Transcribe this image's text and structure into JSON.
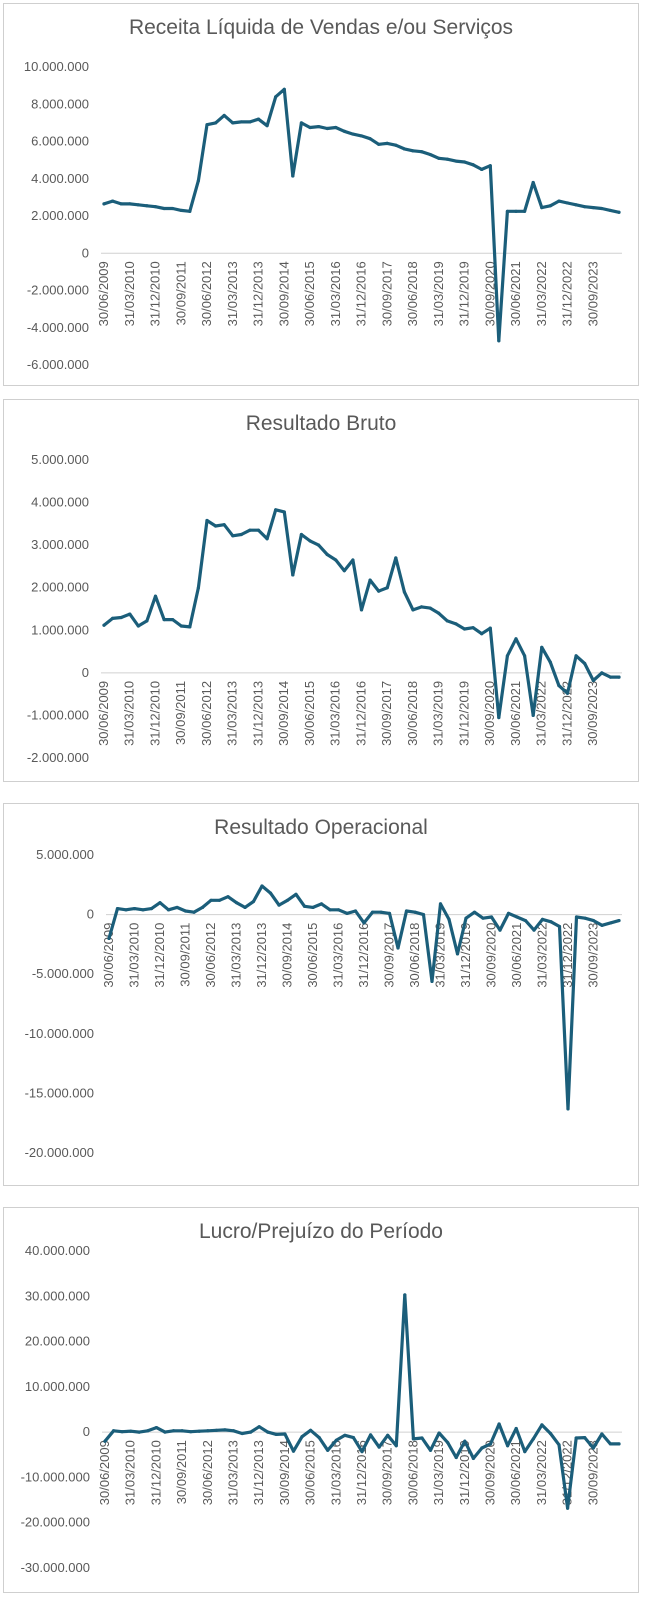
{
  "chart_data": [
    {
      "type": "line",
      "title": "Receita Líquida de Vendas e/ou Serviços",
      "color": "#1b5e7a",
      "ylim": [
        -6000000,
        10000000
      ],
      "y_ticks": [
        10000000,
        8000000,
        6000000,
        4000000,
        2000000,
        0,
        -2000000,
        -4000000,
        -6000000
      ],
      "y_tick_labels": [
        "10.000.000",
        "8.000.000",
        "6.000.000",
        "4.000.000",
        "2.000.000",
        "0",
        "-2.000.000",
        "-4.000.000",
        "-6.000.000"
      ],
      "x_tick_labels": [
        "30/06/2009",
        "31/03/2010",
        "31/12/2010",
        "30/09/2011",
        "30/06/2012",
        "31/03/2013",
        "31/12/2013",
        "30/09/2014",
        "30/06/2015",
        "31/03/2016",
        "31/12/2016",
        "30/09/2017",
        "30/06/2018",
        "31/03/2019",
        "31/12/2019",
        "30/09/2020",
        "30/06/2021",
        "31/03/2022",
        "31/12/2022",
        "30/09/2023"
      ],
      "grid": false,
      "values": [
        2650000,
        2800000,
        2650000,
        2650000,
        2600000,
        2550000,
        2500000,
        2400000,
        2400000,
        2300000,
        2250000,
        3900000,
        6900000,
        7000000,
        7400000,
        7000000,
        7050000,
        7050000,
        7200000,
        6850000,
        8400000,
        8800000,
        4150000,
        7000000,
        6750000,
        6800000,
        6700000,
        6750000,
        6550000,
        6400000,
        6300000,
        6150000,
        5850000,
        5900000,
        5800000,
        5600000,
        5500000,
        5450000,
        5300000,
        5100000,
        5050000,
        4950000,
        4900000,
        4750000,
        4500000,
        4700000,
        -4700000,
        2250000,
        2250000,
        2250000,
        3800000,
        2450000,
        2550000,
        2800000,
        2700000,
        2600000,
        2500000,
        2450000,
        2400000,
        2300000,
        2200000
      ]
    },
    {
      "type": "line",
      "title": "Resultado Bruto",
      "color": "#1b5e7a",
      "ylim": [
        -2000000,
        5000000
      ],
      "y_ticks": [
        5000000,
        4000000,
        3000000,
        2000000,
        1000000,
        0,
        -1000000,
        -2000000
      ],
      "y_tick_labels": [
        "5.000.000",
        "4.000.000",
        "3.000.000",
        "2.000.000",
        "1.000.000",
        "0",
        "-1.000.000",
        "-2.000.000"
      ],
      "x_tick_labels": [
        "30/06/2009",
        "31/03/2010",
        "31/12/2010",
        "30/09/2011",
        "30/06/2012",
        "31/03/2013",
        "31/12/2013",
        "30/09/2014",
        "30/06/2015",
        "31/03/2016",
        "31/12/2016",
        "30/09/2017",
        "30/06/2018",
        "31/03/2019",
        "31/12/2019",
        "30/09/2020",
        "30/06/2021",
        "31/03/2022",
        "31/12/2022",
        "30/09/2023"
      ],
      "grid": false,
      "values": [
        1120000,
        1280000,
        1300000,
        1380000,
        1100000,
        1220000,
        1800000,
        1250000,
        1250000,
        1100000,
        1080000,
        2000000,
        3580000,
        3450000,
        3480000,
        3220000,
        3250000,
        3350000,
        3350000,
        3150000,
        3830000,
        3780000,
        2300000,
        3250000,
        3100000,
        3000000,
        2780000,
        2650000,
        2400000,
        2650000,
        1480000,
        2180000,
        1920000,
        2000000,
        2700000,
        1900000,
        1480000,
        1550000,
        1520000,
        1400000,
        1220000,
        1150000,
        1030000,
        1060000,
        920000,
        1050000,
        -1050000,
        400000,
        800000,
        400000,
        -1000000,
        600000,
        250000,
        -300000,
        -480000,
        400000,
        220000,
        -180000,
        0,
        -100000,
        -100000
      ]
    },
    {
      "type": "line",
      "title": "Resultado Operacional",
      "color": "#1b5e7a",
      "ylim": [
        -20000000,
        5000000
      ],
      "y_ticks": [
        5000000,
        0,
        -5000000,
        -10000000,
        -15000000,
        -20000000
      ],
      "y_tick_labels": [
        "5.000.000",
        "0",
        "-5.000.000",
        "-10.000.000",
        "-15.000.000",
        "-20.000.000"
      ],
      "x_tick_labels": [
        "30/06/2009",
        "31/03/2010",
        "31/12/2010",
        "30/09/2011",
        "30/06/2012",
        "31/03/2013",
        "31/12/2013",
        "30/09/2014",
        "30/06/2015",
        "31/03/2016",
        "31/12/2016",
        "30/09/2017",
        "30/06/2018",
        "31/03/2019",
        "31/12/2019",
        "30/09/2020",
        "30/06/2021",
        "31/03/2022",
        "31/12/2022",
        "30/09/2023"
      ],
      "grid": false,
      "values": [
        -2000000,
        500000,
        400000,
        500000,
        400000,
        500000,
        1000000,
        400000,
        600000,
        300000,
        200000,
        600000,
        1200000,
        1200000,
        1500000,
        1000000,
        600000,
        1100000,
        2400000,
        1800000,
        800000,
        1200000,
        1700000,
        700000,
        600000,
        900000,
        400000,
        400000,
        100000,
        300000,
        -700000,
        200000,
        200000,
        100000,
        -2800000,
        300000,
        200000,
        0,
        -5600000,
        900000,
        -400000,
        -3300000,
        -300000,
        200000,
        -300000,
        -200000,
        -1300000,
        100000,
        -200000,
        -500000,
        -1300000,
        -400000,
        -600000,
        -1000000,
        -16300000,
        -200000,
        -300000,
        -500000,
        -900000,
        -700000,
        -500000
      ]
    },
    {
      "type": "line",
      "title": "Lucro/Prejuízo do Período",
      "color": "#1b5e7a",
      "ylim": [
        -30000000,
        40000000
      ],
      "y_ticks": [
        40000000,
        30000000,
        20000000,
        10000000,
        0,
        -10000000,
        -20000000,
        -30000000
      ],
      "y_tick_labels": [
        "40.000.000",
        "30.000.000",
        "20.000.000",
        "10.000.000",
        "0",
        "-10.000.000",
        "-20.000.000",
        "-30.000.000"
      ],
      "x_tick_labels": [
        "30/06/2009",
        "31/03/2010",
        "31/12/2010",
        "30/09/2011",
        "30/06/2012",
        "31/03/2013",
        "31/12/2013",
        "30/09/2014",
        "30/06/2015",
        "31/03/2016",
        "31/12/2016",
        "30/09/2017",
        "30/06/2018",
        "31/03/2019",
        "31/12/2019",
        "30/09/2020",
        "30/06/2021",
        "31/03/2022",
        "31/12/2022",
        "30/09/2023"
      ],
      "grid": false,
      "values": [
        -2000000,
        300000,
        100000,
        200000,
        0,
        300000,
        1000000,
        0,
        300000,
        300000,
        100000,
        200000,
        300000,
        400000,
        500000,
        300000,
        -300000,
        0,
        1200000,
        0,
        -500000,
        -400000,
        -4200000,
        -1000000,
        400000,
        -1200000,
        -4000000,
        -1800000,
        -700000,
        -1200000,
        -4300000,
        -600000,
        -3300000,
        -700000,
        -3000000,
        30300000,
        -1500000,
        -1300000,
        -4000000,
        -200000,
        -2300000,
        -5600000,
        -2000000,
        -5800000,
        -3500000,
        -2600000,
        1800000,
        -3000000,
        800000,
        -4300000,
        -1500000,
        1600000,
        -300000,
        -2800000,
        -16800000,
        -1300000,
        -1200000,
        -3500000,
        -400000,
        -2600000,
        -2600000
      ]
    }
  ]
}
